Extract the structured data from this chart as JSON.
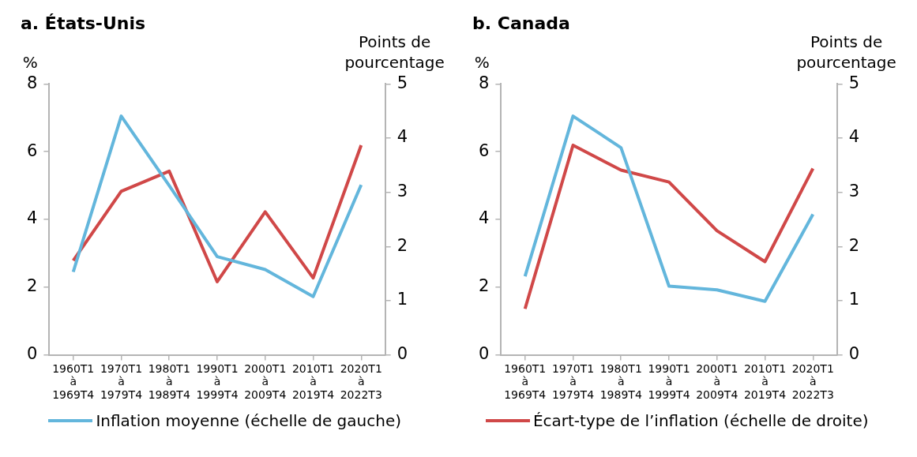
{
  "chart_data": [
    {
      "type": "line",
      "title": "a. États-Unis",
      "ylabel": "%",
      "y2label": "Points de\npourcentage",
      "categories": [
        "1960T1\nà\n1969T4",
        "1970T1\nà\n1979T4",
        "1980T1\nà\n1989T4",
        "1990T1\nà\n1999T4",
        "2000T1\nà\n2009T4",
        "2010T1\nà\n2019T4",
        "2020T1\nà\n2022T3"
      ],
      "series": [
        {
          "name": "Inflation moyenne (échelle de gauche)",
          "color": "#63b6dc",
          "values": [
            2.45,
            7.05,
            5.0,
            2.9,
            2.52,
            1.72,
            5.02
          ]
        },
        {
          "name": "Écart-type de l’inflation (échelle de droite)",
          "color": "#d04848",
          "axis": "y2",
          "values": [
            1.74,
            3.02,
            3.39,
            1.35,
            2.64,
            1.42,
            3.87
          ]
        }
      ],
      "ylim": [
        0,
        8
      ],
      "yticks": [
        0,
        2,
        4,
        6,
        8
      ],
      "y2lim": [
        0,
        5
      ],
      "y2ticks": [
        0,
        1,
        2,
        3,
        4,
        5
      ],
      "grid": false,
      "legend": "bottom"
    },
    {
      "type": "line",
      "title": "b. Canada",
      "ylabel": "%",
      "y2label": "Points de\npourcentage",
      "categories": [
        "1960T1\nà\n1969T4",
        "1970T1\nà\n1979T4",
        "1980T1\nà\n1989T4",
        "1990T1\nà\n1999T4",
        "2000T1\nà\n2009T4",
        "2010T1\nà\n2019T4",
        "2020T1\nà\n2022T3"
      ],
      "series": [
        {
          "color": "#63b6dc",
          "values": [
            2.32,
            7.05,
            6.12,
            2.03,
            1.92,
            1.58,
            4.15
          ]
        },
        {
          "color": "#d04848",
          "axis": "y2",
          "values": [
            0.85,
            3.87,
            3.41,
            3.19,
            2.29,
            1.72,
            3.44
          ]
        }
      ],
      "ylim": [
        0,
        8
      ],
      "yticks": [
        0,
        2,
        4,
        6,
        8
      ],
      "y2lim": [
        0,
        5
      ],
      "y2ticks": [
        0,
        1,
        2,
        3,
        4,
        5
      ],
      "grid": false
    }
  ]
}
